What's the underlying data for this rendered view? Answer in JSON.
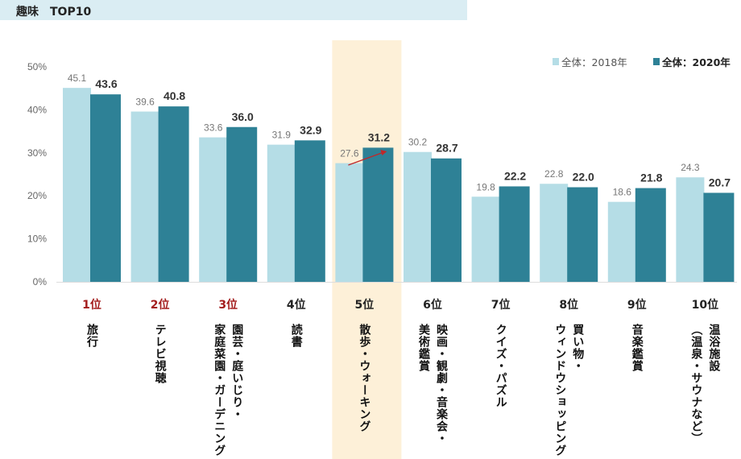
{
  "title": "趣味　TOP10",
  "chart_data": {
    "type": "bar",
    "title": "趣味　TOP10",
    "ylim": [
      0,
      50
    ],
    "yticks": [
      "0%",
      "10%",
      "20%",
      "30%",
      "40%",
      "50%"
    ],
    "ytick_values": [
      0,
      10,
      20,
      30,
      40,
      50
    ],
    "legend_position": "top-right",
    "ranks": [
      "1位",
      "2位",
      "3位",
      "4位",
      "5位",
      "6位",
      "7位",
      "8位",
      "9位",
      "10位"
    ],
    "categories": [
      "旅行",
      "テレビ視聴",
      "園芸・庭いじり・\n家庭菜園・ガーデニング",
      "読書",
      "散歩・ウォーキング",
      "映画・観劇・音楽会・\n美術鑑賞",
      "クイズ・パズル",
      "買い物・\nウィンドウショッピング",
      "音楽鑑賞",
      "温浴施設\n（温泉・サウナなど）"
    ],
    "series": [
      {
        "name": "全体：2018年",
        "color": "#b5dde6",
        "values": [
          45.1,
          39.6,
          33.6,
          31.9,
          27.6,
          30.2,
          19.8,
          22.8,
          18.6,
          24.3
        ]
      },
      {
        "name": "全体：2020年",
        "color": "#2e8196",
        "values": [
          43.6,
          40.8,
          36.0,
          32.9,
          31.2,
          28.7,
          22.2,
          22.0,
          21.8,
          20.7
        ]
      }
    ],
    "highlight_index": 4,
    "highlight_color": "#fdf0d8",
    "rank_accent_color": "#a31d1d",
    "arrow_color": "#c0282a"
  }
}
